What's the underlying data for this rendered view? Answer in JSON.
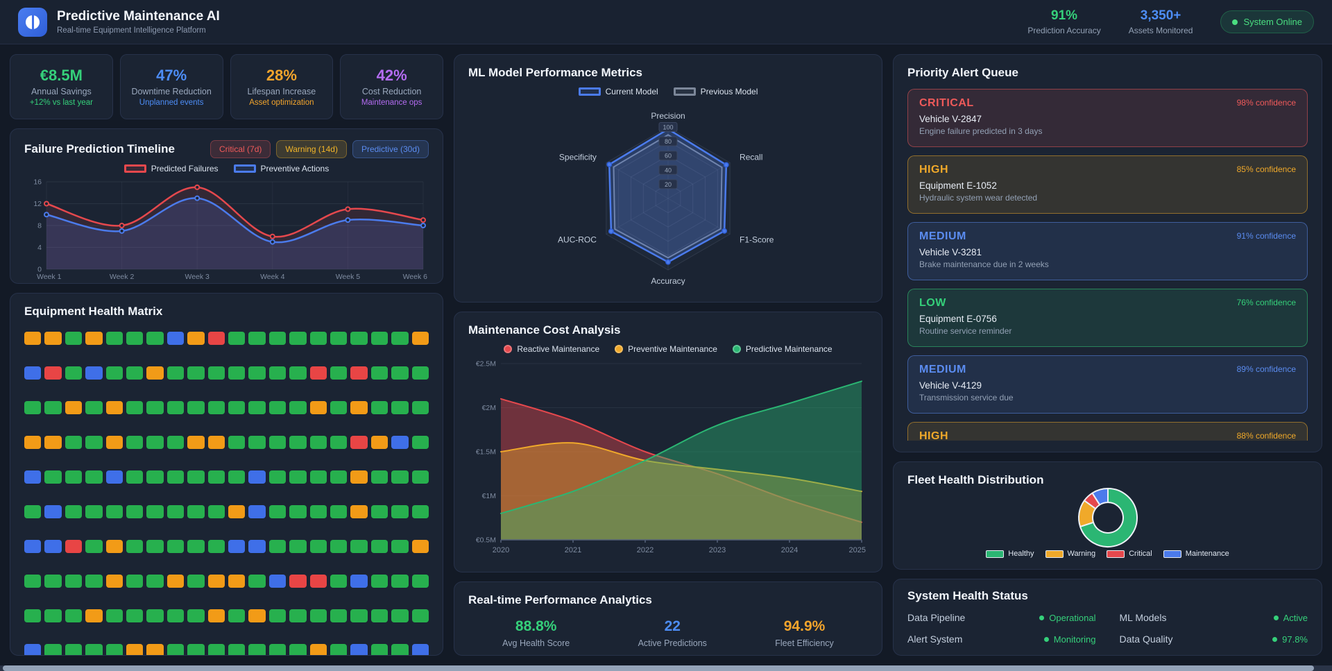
{
  "header": {
    "title": "Predictive Maintenance AI",
    "subtitle": "Real-time Equipment Intelligence Platform",
    "stats": [
      {
        "value": "91%",
        "label": "Prediction Accuracy",
        "color": "#35d07a"
      },
      {
        "value": "3,350+",
        "label": "Assets Monitored",
        "color": "#4d8df6"
      }
    ],
    "status_badge": "System Online"
  },
  "kpis": [
    {
      "value": "€8.5M",
      "label": "Annual Savings",
      "sub": "+12% vs last year",
      "color": "#35d07a"
    },
    {
      "value": "47%",
      "label": "Downtime Reduction",
      "sub": "Unplanned events",
      "color": "#4d8df6"
    },
    {
      "value": "28%",
      "label": "Lifespan Increase",
      "sub": "Asset optimization",
      "color": "#f2a42c"
    },
    {
      "value": "42%",
      "label": "Cost Reduction",
      "sub": "Maintenance ops",
      "color": "#b46cf2"
    }
  ],
  "panels": {
    "timeline": {
      "title": "Failure Prediction Timeline",
      "buttons": [
        {
          "label": "Critical (7d)",
          "color": "#ef5a5a"
        },
        {
          "label": "Warning (14d)",
          "color": "#f0b429"
        },
        {
          "label": "Predictive (30d)",
          "color": "#5b8cf0"
        }
      ]
    },
    "matrix": {
      "title": "Equipment Health Matrix"
    },
    "radar": {
      "title": "ML Model Performance Metrics"
    },
    "cost": {
      "title": "Maintenance Cost Analysis"
    },
    "performance": {
      "title": "Real-time Performance Analytics",
      "stats": [
        {
          "value": "88.8%",
          "label": "Avg Health Score",
          "color": "#35d07a"
        },
        {
          "value": "22",
          "label": "Active Predictions",
          "color": "#4d8df6"
        },
        {
          "value": "94.9%",
          "label": "Fleet Efficiency",
          "color": "#f2a42c"
        }
      ]
    },
    "alerts": {
      "title": "Priority Alert Queue",
      "severity_colors": {
        "critical": "#ef5a5a",
        "high": "#f0a92a",
        "medium": "#5b8cf0",
        "low": "#35d07a"
      },
      "items": [
        {
          "severity": "CRITICAL",
          "level": "critical",
          "confidence": "98% confidence",
          "name": "Vehicle V-2847",
          "description": "Engine failure predicted in 3 days"
        },
        {
          "severity": "HIGH",
          "level": "high",
          "confidence": "85% confidence",
          "name": "Equipment E-1052",
          "description": "Hydraulic system wear detected"
        },
        {
          "severity": "MEDIUM",
          "level": "medium",
          "confidence": "91% confidence",
          "name": "Vehicle V-3281",
          "description": "Brake maintenance due in 2 weeks"
        },
        {
          "severity": "LOW",
          "level": "low",
          "confidence": "76% confidence",
          "name": "Equipment E-0756",
          "description": "Routine service reminder"
        },
        {
          "severity": "MEDIUM",
          "level": "medium",
          "confidence": "89% confidence",
          "name": "Vehicle V-4129",
          "description": "Transmission service due"
        },
        {
          "severity": "HIGH",
          "level": "high",
          "confidence": "88% confidence",
          "name": "",
          "description": ""
        }
      ]
    },
    "fleet": {
      "title": "Fleet Health Distribution"
    },
    "system": {
      "title": "System Health Status",
      "items": [
        {
          "label": "Data Pipeline",
          "status": "Operational"
        },
        {
          "label": "ML Models",
          "status": "Active"
        },
        {
          "label": "Alert System",
          "status": "Monitoring"
        },
        {
          "label": "Data Quality",
          "status": "97.8%"
        }
      ]
    }
  },
  "health_matrix": {
    "colors": {
      "g": "#27b04e",
      "o": "#f29b17",
      "r": "#e84545",
      "b": "#3f6fe8"
    },
    "rows": [
      "oogogggborgggggggggo",
      "brgbggogggggggrgrggg",
      "ggogogggggggggogoggg",
      "ooggogggooggggggrobg",
      "bgggbggggggbggggoggg",
      "gbggggggggobggggoggg",
      "bbrgogggggbbgggggggo",
      "ggggoggogoogbrrgbggg",
      "gggogggggogogggggggg",
      "bggggoogggggggogbggb"
    ]
  },
  "chart_data": [
    {
      "id": "failure-timeline",
      "type": "line",
      "title": "Failure Prediction Timeline",
      "categories": [
        "Week 1",
        "Week 2",
        "Week 3",
        "Week 4",
        "Week 5",
        "Week 6"
      ],
      "series": [
        {
          "name": "Predicted Failures",
          "color": "#e5484d",
          "values": [
            12,
            8,
            15,
            6,
            11,
            9
          ]
        },
        {
          "name": "Preventive Actions",
          "color": "#4b7bec",
          "values": [
            10,
            7,
            13,
            5,
            9,
            8
          ]
        }
      ],
      "ylim": [
        0,
        16
      ],
      "yticks": [
        0,
        4,
        8,
        12,
        16
      ],
      "grid": true,
      "legend_position": "top"
    },
    {
      "id": "ml-radar",
      "type": "radar",
      "title": "ML Model Performance Metrics",
      "axes": [
        "Precision",
        "Recall",
        "F1-Score",
        "Accuracy",
        "AUC-ROC",
        "Specificity"
      ],
      "rings": [
        20,
        40,
        60,
        80,
        100
      ],
      "max": 100,
      "series": [
        {
          "name": "Current Model",
          "color": "#4b7bec",
          "values": [
            97,
            94,
            91,
            89,
            92,
            95
          ]
        },
        {
          "name": "Previous Model",
          "color": "#7c8799",
          "values": [
            89,
            87,
            85,
            83,
            86,
            88
          ]
        }
      ],
      "legend_position": "top"
    },
    {
      "id": "cost-analysis",
      "type": "area",
      "title": "Maintenance Cost Analysis",
      "x": [
        2020,
        2021,
        2022,
        2023,
        2024,
        2025
      ],
      "series": [
        {
          "name": "Reactive Maintenance",
          "color": "#e5484d",
          "values": [
            2.1,
            1.85,
            1.5,
            1.25,
            0.95,
            0.7
          ]
        },
        {
          "name": "Preventive Maintenance",
          "color": "#f0a92a",
          "values": [
            1.5,
            1.6,
            1.4,
            1.3,
            1.2,
            1.05
          ]
        },
        {
          "name": "Predictive Maintenance",
          "color": "#2bb673",
          "values": [
            0.8,
            1.05,
            1.4,
            1.8,
            2.05,
            2.3
          ]
        }
      ],
      "ylim": [
        0.5,
        2.5
      ],
      "yticks": [
        2.5,
        2,
        1.5,
        1,
        0.5
      ],
      "ytick_labels": [
        "€2.5M",
        "€2M",
        "€1.5M",
        "€1M",
        "€0.5M"
      ],
      "legend_position": "top"
    },
    {
      "id": "fleet-donut",
      "type": "pie",
      "donut": true,
      "title": "Fleet Health Distribution",
      "categories": [
        "Healthy",
        "Warning",
        "Critical",
        "Maintenance"
      ],
      "values": [
        70,
        15,
        6,
        9
      ],
      "colors": [
        "#2bb673",
        "#f0a92a",
        "#e5484d",
        "#4b7bec"
      ],
      "legend_position": "bottom"
    }
  ]
}
